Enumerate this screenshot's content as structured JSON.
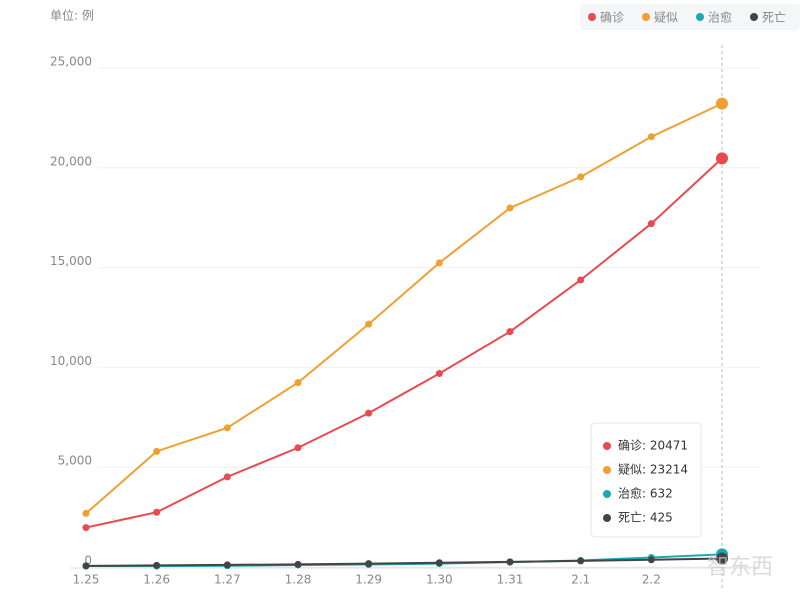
{
  "chart_data": {
    "type": "line",
    "unit_label": "单位: 例",
    "categories": [
      "1.25",
      "1.26",
      "1.27",
      "1.28",
      "1.29",
      "1.30",
      "1.31",
      "2.1",
      "2.2",
      null
    ],
    "series": [
      {
        "name": "确诊",
        "color": "#e84a4f",
        "values": [
          1975,
          2744,
          4515,
          5974,
          7711,
          9692,
          11791,
          14380,
          17205,
          20471
        ]
      },
      {
        "name": "疑似",
        "color": "#f0a030",
        "values": [
          2684,
          5794,
          6973,
          9239,
          12167,
          15238,
          17988,
          19544,
          21558,
          23214
        ]
      },
      {
        "name": "治愈",
        "color": "#1aa9b5",
        "values": [
          49,
          51,
          60,
          103,
          124,
          171,
          243,
          328,
          475,
          632
        ]
      },
      {
        "name": "死亡",
        "color": "#444444",
        "values": [
          56,
          80,
          106,
          132,
          170,
          213,
          259,
          304,
          361,
          425
        ]
      }
    ],
    "ylim": [
      0,
      25000
    ],
    "yticks": [
      0,
      {
        "value": 5000,
        "label": "5,000"
      },
      {
        "value": 10000,
        "label": "10,000"
      },
      {
        "value": 15000,
        "label": "15,000"
      },
      {
        "value": 20000,
        "label": "20,000"
      },
      {
        "value": 25000,
        "label": "25,000"
      }
    ],
    "grid": true,
    "tooltip": [
      "确诊: 20471",
      "疑似: 23214",
      "治愈: 632",
      "死亡: 425"
    ],
    "watermark": "智东西"
  }
}
